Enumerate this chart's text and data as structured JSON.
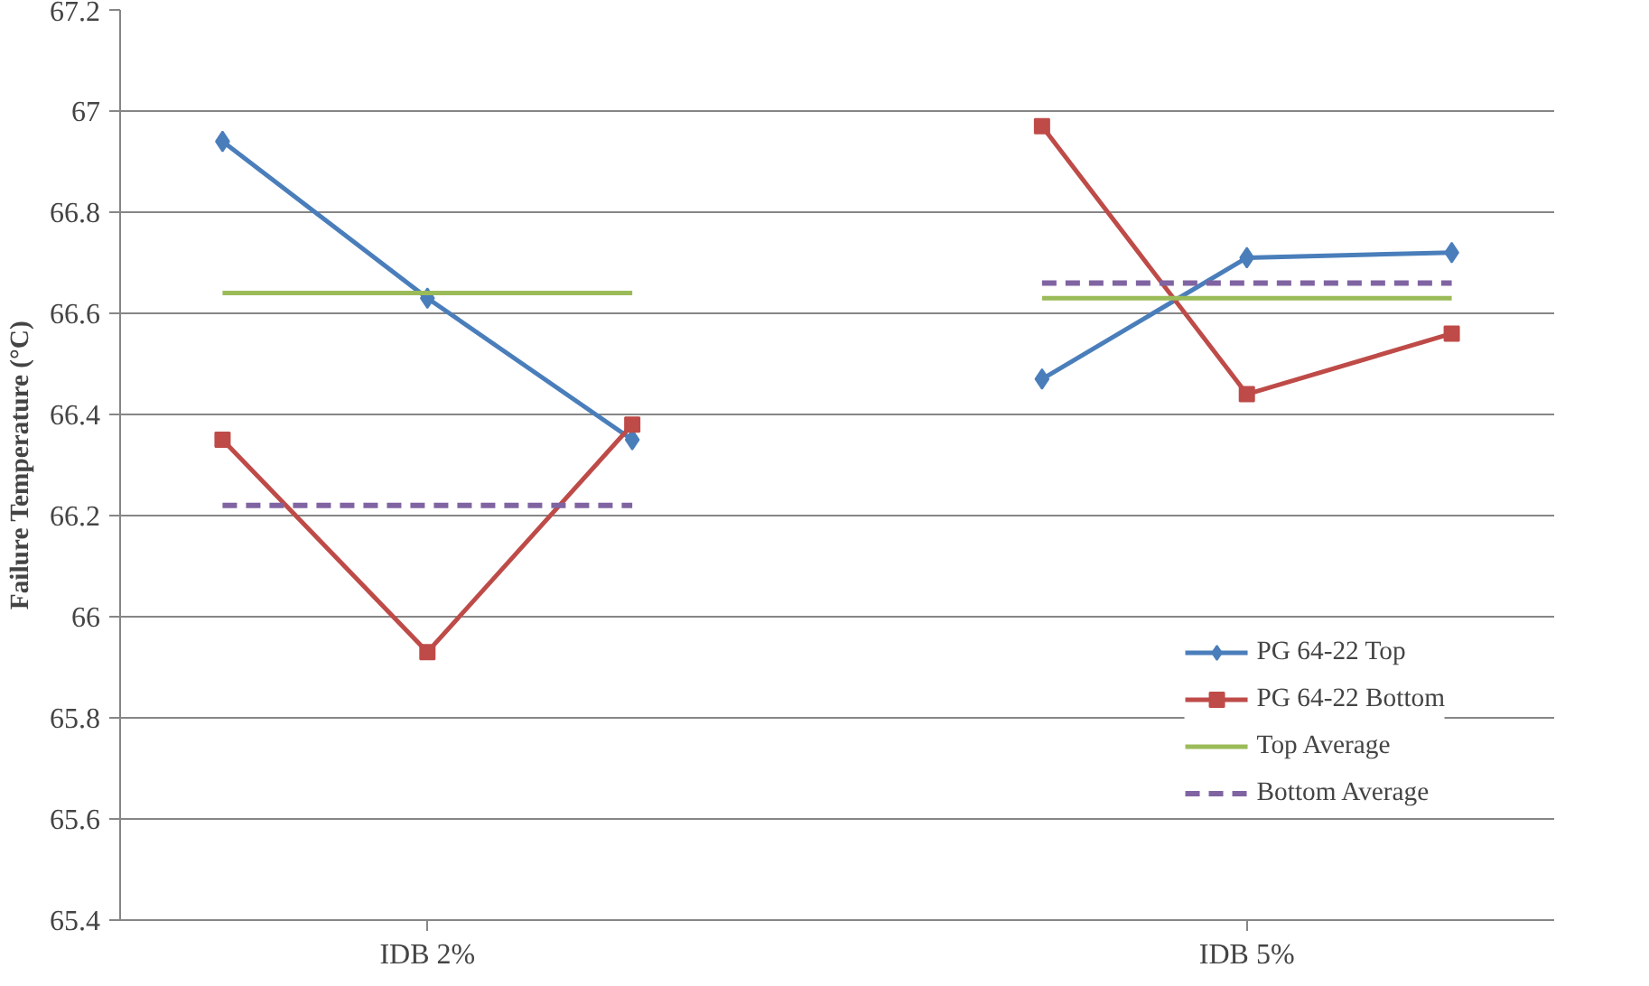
{
  "chart_data": {
    "type": "line",
    "ylabel": "Failure Temperature (°C)",
    "categories": [
      null,
      "IDB 2%",
      null,
      null,
      null,
      "IDB 5%",
      null
    ],
    "ylim": [
      65.4,
      67.2
    ],
    "yticks": [
      65.4,
      65.6,
      65.8,
      66,
      66.2,
      66.4,
      66.6,
      66.8,
      67,
      67.2
    ],
    "grid": "y",
    "legend": "bottom right",
    "series": [
      {
        "name": "PG 64-22 Top",
        "color": "#4a7ebb",
        "marker": "diamond",
        "line_style": "solid",
        "values": [
          66.94,
          66.63,
          66.35,
          null,
          66.47,
          66.71,
          66.72
        ]
      },
      {
        "name": "PG 64-22 Bottom",
        "color": "#be4b48",
        "marker": "square",
        "line_style": "solid",
        "values": [
          66.35,
          65.93,
          66.38,
          null,
          66.97,
          66.44,
          66.56
        ]
      },
      {
        "name": "Top Average",
        "color": "#9bbb59",
        "marker": "none",
        "line_style": "solid",
        "values": [
          66.64,
          66.64,
          66.64,
          null,
          66.63,
          66.63,
          66.63
        ]
      },
      {
        "name": "Bottom Average",
        "color": "#8064a2",
        "marker": "none",
        "line_style": "dashed",
        "values": [
          66.22,
          66.22,
          66.22,
          null,
          66.66,
          66.66,
          66.66
        ]
      }
    ]
  }
}
